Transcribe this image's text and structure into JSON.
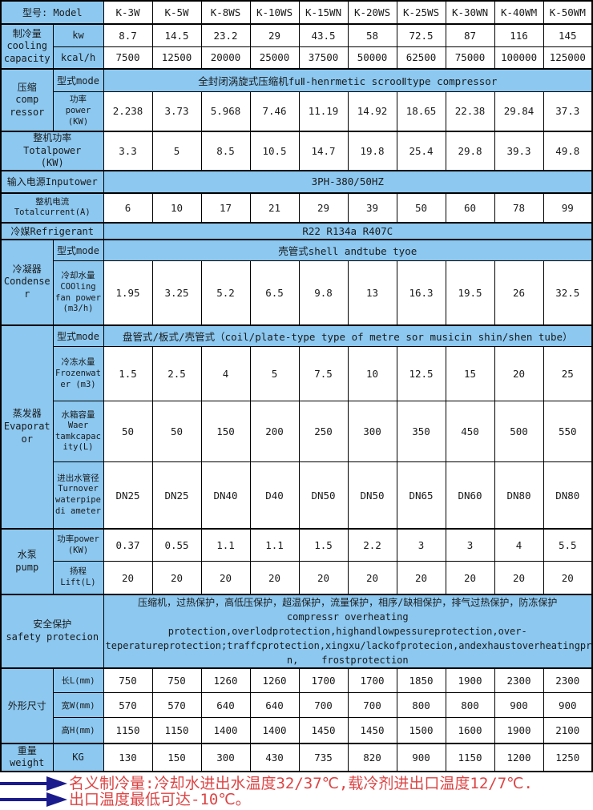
{
  "colors": {
    "cell_blue": "#8cc8f0",
    "border_black": "#000000",
    "note_red": "#dd4444",
    "arrow_navy": "#1b1b8e"
  },
  "labels": {
    "mode": "型式mode"
  },
  "header": {
    "model_label": "型号: Model",
    "models": [
      "K-3W",
      "K-5W",
      "K-8WS",
      "K-10WS",
      "K-15WN",
      "K-20WS",
      "K-25WS",
      "K-30WN",
      "K-40WM",
      "K-50WM"
    ]
  },
  "rows": {
    "cooling": {
      "group": "制冷量\ncooling\ncapacity",
      "kw_label": "kw",
      "kw_values": [
        8.7,
        14.5,
        23.2,
        29,
        43.5,
        58,
        72.5,
        87,
        116,
        145
      ],
      "kcal_label": "kcal/h",
      "kcal_values": [
        7500,
        12500,
        20000,
        25000,
        37500,
        50000,
        62500,
        75000,
        100000,
        125000
      ]
    },
    "compressor": {
      "group": "压缩\ncomp\nressor",
      "mode_value": "全封闭涡旋式压缩机fuⅡ-henrmetic scrooⅡtype compressor",
      "power_label": "功率\npower\n(KW)",
      "power_values": [
        2.238,
        3.73,
        5.968,
        7.46,
        11.19,
        14.92,
        18.65,
        22.38,
        29.84,
        37.3
      ]
    },
    "totalpower": {
      "label": "整机功率\nTotalpower\n(KW)",
      "values": [
        3.3,
        5,
        8.5,
        10.5,
        14.7,
        19.8,
        25.4,
        29.8,
        39.3,
        49.8
      ]
    },
    "input_power": {
      "label": "输入电源Inputower",
      "value": "3PH-380/50HZ"
    },
    "total_current": {
      "label": "整机电流\nTotalcurrent(A)",
      "values": [
        6,
        10,
        17,
        21,
        29,
        39,
        50,
        60,
        78,
        99
      ]
    },
    "refrigerant": {
      "label": "冷媒Refrigerant",
      "value": "R22 R134a R407C"
    },
    "condenser": {
      "group": "冷凝器\nCondenser",
      "mode_value": "壳管式shell andtube tyoe",
      "cooling_water_label": "冷却水量\nCOOling\nfan power\n(m3/h)",
      "cooling_water_values": [
        1.95,
        3.25,
        5.2,
        6.5,
        9.8,
        13,
        16.3,
        19.5,
        26,
        32.5
      ]
    },
    "evaporator": {
      "group": "蒸发器\nEvaporator",
      "mode_value": "盘管式/板式/壳管式（coil/plate-type type of metre sor musicin shin/shen tube）",
      "frozen_water_label": "冷冻水量\nFrozenwat\ner (m3)",
      "frozen_water_values": [
        1.5,
        2.5,
        4,
        5,
        7.5,
        10,
        12.5,
        15,
        20,
        25
      ],
      "tank_capacity_label": "水箱容量\nWaer\ntamkcapac\nity(L)",
      "tank_capacity_values": [
        50,
        50,
        150,
        200,
        250,
        300,
        350,
        450,
        500,
        550
      ],
      "pipe_diameter_label": "进出水管径\nTurnover\nwaterpipe\ndi ameter",
      "pipe_diameter_values": [
        "DN25",
        "DN25",
        "DN40",
        "D40",
        "DN50",
        "DN50",
        "DN65",
        "DN60",
        "DN80",
        "DN80"
      ]
    },
    "pump": {
      "group": "水泵\npump",
      "power_label": "功率power\n(KW)",
      "power_values": [
        0.37,
        0.55,
        1.1,
        1.1,
        1.5,
        2.2,
        3,
        3,
        4,
        5.5
      ],
      "lift_label": "扬程\nLift(L)",
      "lift_values": [
        20,
        20,
        20,
        20,
        20,
        20,
        20,
        20,
        20,
        20
      ]
    },
    "safety": {
      "label": "安全保护\nsafety protecion",
      "text": "压缩机，过热保护，高低压保护，超温保护，流量保护，相序/缺相保护，排气过热保护，防冻保护\ncompressr overheating protection,overlodprotection,highandlowpessureprotection,over-\nteperatureprotection;traffcprotection,xingxu/lackofprotecion,andexhaustoverheatingproteio\nn,    frostprotection"
    },
    "dimensions": {
      "group": "外形尺寸",
      "length_label": "长L(mm)",
      "length_values": [
        750,
        750,
        1260,
        1260,
        1700,
        1700,
        1850,
        1900,
        2300,
        2300
      ],
      "width_label": "宽W(mm)",
      "width_values": [
        570,
        570,
        640,
        640,
        700,
        700,
        800,
        800,
        900,
        900
      ],
      "height_label": "高H(mm)",
      "height_values": [
        1150,
        1150,
        1400,
        1400,
        1450,
        1450,
        1500,
        1600,
        1900,
        2100
      ]
    },
    "weight": {
      "group": "重量\nweight",
      "unit_label": "KG",
      "values": [
        130,
        150,
        300,
        430,
        735,
        820,
        900,
        1150,
        1200,
        1250
      ]
    }
  },
  "notes": [
    "名义制冷量:冷却水进出水温度32/37℃,载冷剂进出口温度12/7℃.",
    "出口温度最低可达-10℃。"
  ]
}
